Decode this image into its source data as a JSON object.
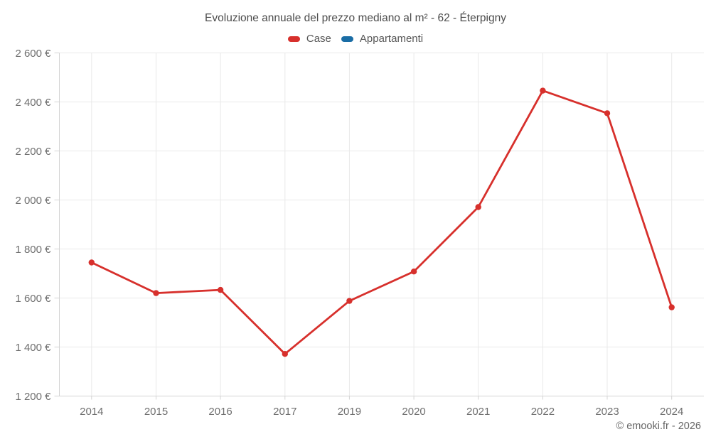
{
  "title": "Evoluzione annuale del prezzo mediano al m² - 62 - Éterpigny",
  "copyright": "© emooki.fr - 2026",
  "legend": [
    {
      "label": "Case",
      "color": "#d7302c"
    },
    {
      "label": "Appartamenti",
      "color": "#1a6da5"
    }
  ],
  "colors": {
    "case_series": "#d7302c",
    "appartamenti_series": "#1a6da5",
    "grid": "#e9e9e9",
    "axis": "#d4d4d4",
    "tick_label": "#6f6f6f"
  },
  "chart_data": {
    "type": "line",
    "title": "Evoluzione annuale del prezzo mediano al m² - 62 - Éterpigny",
    "categories": [
      "2014",
      "2015",
      "2016",
      "2017",
      "2019",
      "2020",
      "2021",
      "2022",
      "2023",
      "2024"
    ],
    "series": [
      {
        "name": "Case",
        "color": "#d7302c",
        "values": [
          1745,
          1620,
          1633,
          1372,
          1588,
          1708,
          1971,
          2446,
          2354,
          1562
        ]
      },
      {
        "name": "Appartamenti",
        "color": "#1a6da5",
        "values": []
      }
    ],
    "xlabel": "",
    "ylabel": "",
    "ylim": [
      1200,
      2600
    ],
    "ytick_step": 200,
    "ytick_labels": [
      "1 200 €",
      "1 400 €",
      "1 600 €",
      "1 800 €",
      "2 000 €",
      "2 200 €",
      "2 400 €",
      "2 600 €"
    ],
    "yunit": "€",
    "grid": true,
    "legend_position": "top",
    "marker": "circle"
  }
}
